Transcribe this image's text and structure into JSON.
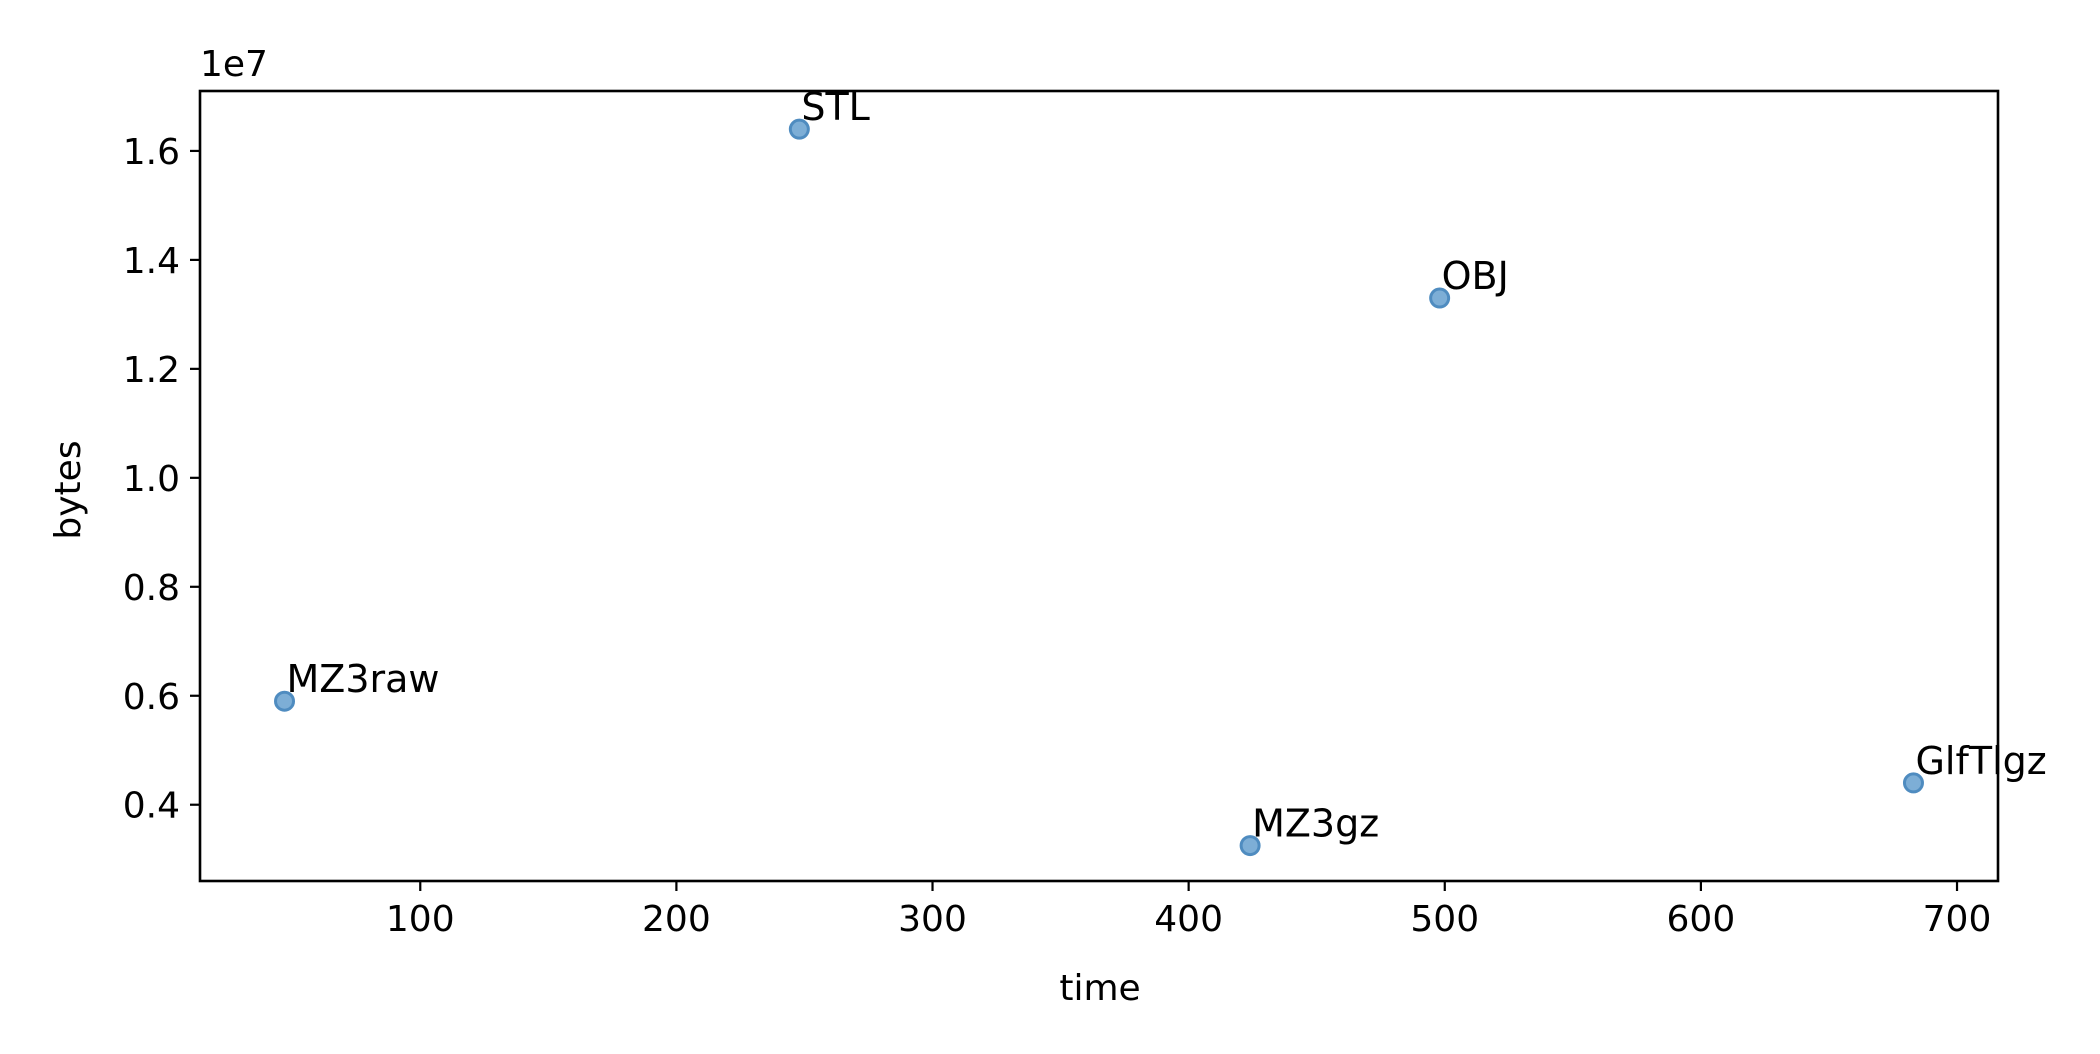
{
  "chart_data": {
    "type": "scatter",
    "title": "",
    "xlabel": "time",
    "ylabel": "bytes",
    "y_offset_text": "1e7",
    "xlim": [
      14,
      716
    ],
    "ylim": [
      2.6,
      17.1
    ],
    "y_unit_multiplier": 10000000,
    "x_ticks": [
      100,
      200,
      300,
      400,
      500,
      600,
      700
    ],
    "y_ticks": [
      0.4,
      0.6,
      0.8,
      1.0,
      1.2,
      1.4,
      1.6
    ],
    "y_tick_labels": [
      "0.4",
      "0.6",
      "0.8",
      "1.0",
      "1.2",
      "1.4",
      "1.6"
    ],
    "grid": false,
    "marker_color": "#6fa5d2",
    "marker_edge_color": "#4f8cc0",
    "points": [
      {
        "label": "STL",
        "x": 248,
        "y": 16.4
      },
      {
        "label": "OBJ",
        "x": 498,
        "y": 13.3
      },
      {
        "label": "MZ3raw",
        "x": 47,
        "y": 5.9
      },
      {
        "label": "MZ3gz",
        "x": 424,
        "y": 3.25
      },
      {
        "label": "GlfTlgz",
        "x": 683,
        "y": 4.4
      }
    ]
  }
}
